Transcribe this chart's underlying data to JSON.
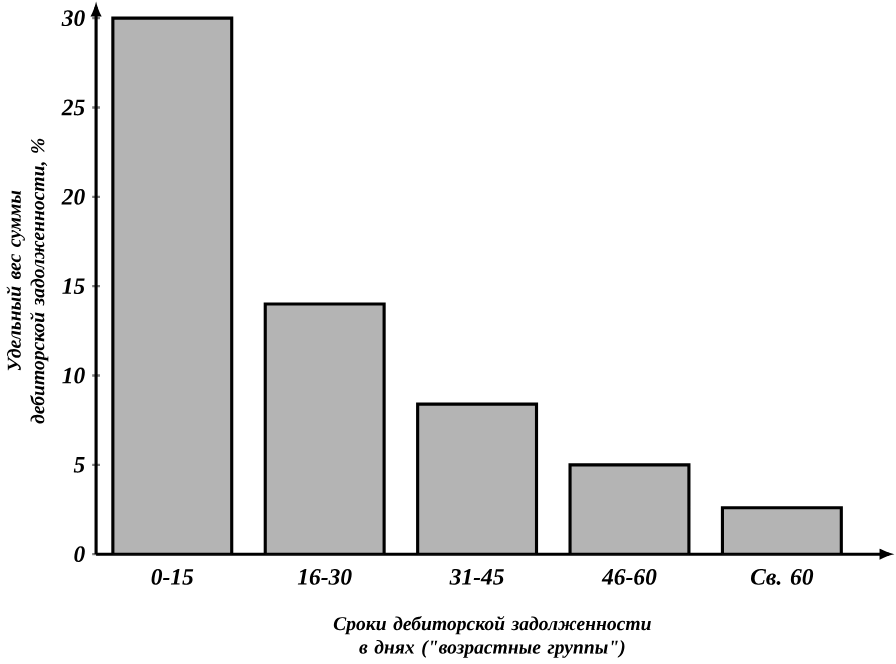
{
  "chart_data": {
    "type": "bar",
    "xlabel": "Сроки дебиторской задолженности в днях (\"возрастные группы\")",
    "ylabel": "Удельный вес суммы дебиторской задолженности, %",
    "categories": [
      "0-15",
      "16-30",
      "31-45",
      "46-60",
      "Св. 60"
    ],
    "values": [
      30,
      14,
      8.4,
      5,
      2.6
    ],
    "color": "#b4b4b4",
    "ylim": [
      0,
      30
    ],
    "yticks": [
      0,
      5,
      10,
      15,
      20,
      25,
      30
    ],
    "grid": false
  }
}
